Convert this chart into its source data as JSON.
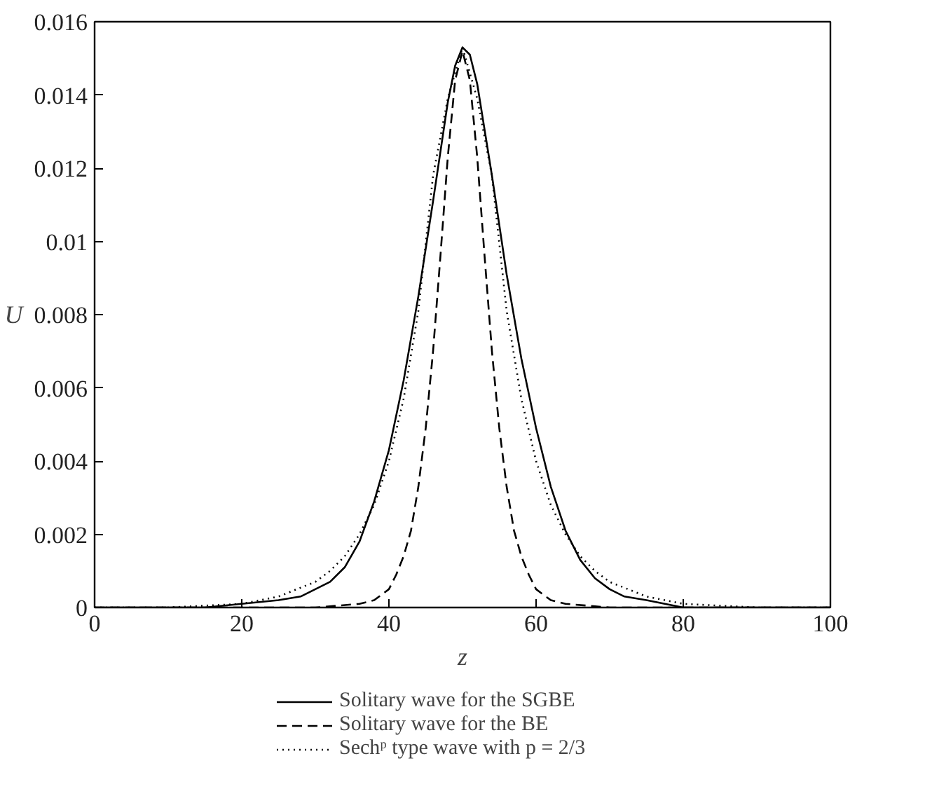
{
  "chart_data": {
    "type": "line",
    "xlabel": "z",
    "ylabel": "U",
    "xlim": [
      0,
      100
    ],
    "ylim": [
      0,
      0.016
    ],
    "xticks": [
      0,
      20,
      40,
      60,
      80,
      100
    ],
    "yticks": [
      0,
      0.002,
      0.004,
      0.006,
      0.008,
      0.01,
      0.012,
      0.014,
      0.016
    ],
    "grid": false,
    "legend": "bottom",
    "marker": "none",
    "series": [
      {
        "name": "Solitary wave for the SGBE",
        "color": "#000000",
        "line_style": "solid",
        "x": [
          0,
          15,
          20,
          25,
          28,
          30,
          32,
          34,
          36,
          38,
          40,
          42,
          44,
          46,
          48,
          49,
          50,
          51,
          52,
          54,
          56,
          58,
          60,
          62,
          64,
          66,
          68,
          70,
          72,
          75,
          80,
          100
        ],
        "values": [
          0,
          0,
          0.0001,
          0.0002,
          0.0003,
          0.0005,
          0.0007,
          0.0011,
          0.0018,
          0.0029,
          0.0043,
          0.0062,
          0.0085,
          0.0111,
          0.0138,
          0.0148,
          0.0153,
          0.0151,
          0.0143,
          0.0118,
          0.0091,
          0.0068,
          0.0049,
          0.0033,
          0.0021,
          0.0013,
          0.0008,
          0.0005,
          0.0003,
          0.0002,
          0,
          0
        ]
      },
      {
        "name": "Solitary wave for the BE",
        "color": "#000000",
        "line_style": "dashed",
        "x": [
          0,
          30,
          36,
          38,
          40,
          41,
          42,
          43,
          44,
          45,
          46,
          47,
          48,
          49,
          50,
          51,
          52,
          53,
          54,
          55,
          56,
          57,
          58,
          59,
          60,
          62,
          64,
          70,
          100
        ],
        "values": [
          0,
          0,
          0.0001,
          0.0002,
          0.0005,
          0.0009,
          0.0014,
          0.0021,
          0.0033,
          0.0049,
          0.007,
          0.0096,
          0.0123,
          0.0144,
          0.0152,
          0.0144,
          0.0123,
          0.0096,
          0.007,
          0.0049,
          0.0033,
          0.0021,
          0.0014,
          0.0009,
          0.0005,
          0.0002,
          0.0001,
          0,
          0
        ]
      },
      {
        "name": "Sechᵖ type wave with p = 2/3",
        "color": "#000000",
        "line_style": "dotted",
        "x": [
          0,
          10,
          20,
          25,
          30,
          32,
          34,
          36,
          38,
          40,
          42,
          44,
          46,
          48,
          50,
          52,
          54,
          56,
          58,
          60,
          62,
          64,
          66,
          68,
          70,
          75,
          80,
          90,
          100
        ],
        "values": [
          0,
          0,
          0.0001,
          0.0003,
          0.0007,
          0.001,
          0.0014,
          0.002,
          0.0028,
          0.004,
          0.0057,
          0.0081,
          0.0118,
          0.0139,
          0.0153,
          0.0139,
          0.0118,
          0.0081,
          0.0057,
          0.004,
          0.0028,
          0.002,
          0.0014,
          0.001,
          0.0007,
          0.0003,
          0.0001,
          0,
          0
        ]
      }
    ]
  }
}
